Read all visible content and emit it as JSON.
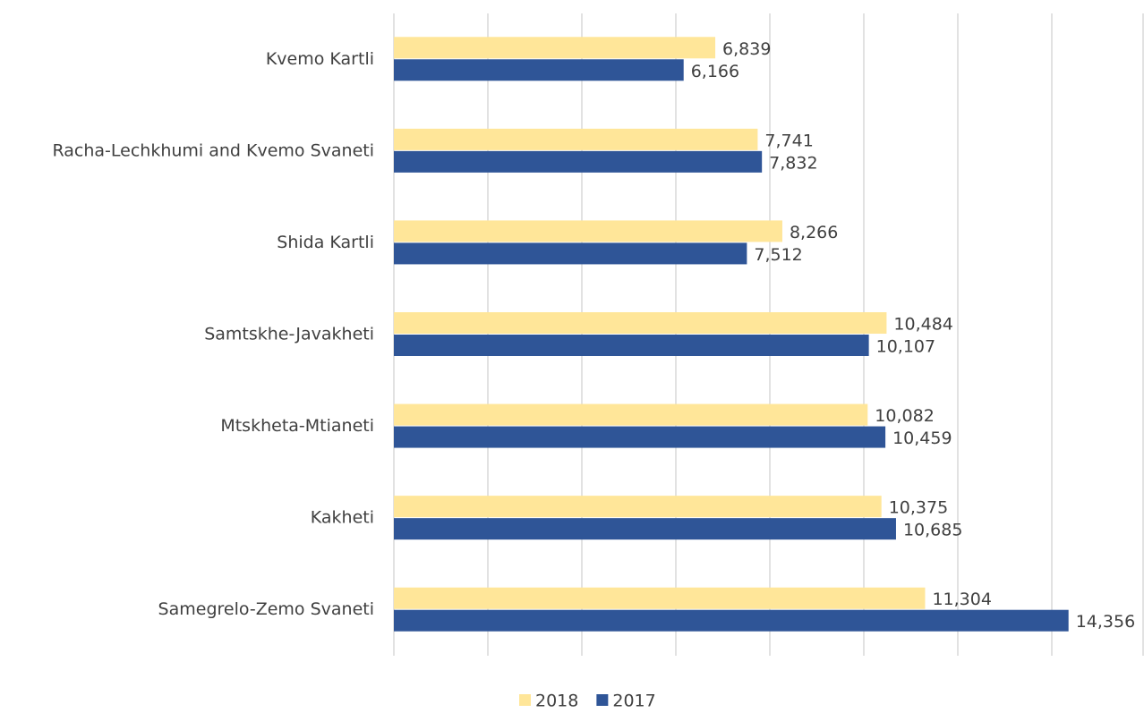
{
  "chart_data": {
    "type": "hbar",
    "categories": [
      "Kvemo Kartli",
      "Racha-Lechkhumi and Kvemo Svaneti",
      "Shida Kartli",
      "Samtskhe-Javakheti",
      "Mtskheta-Mtianeti",
      "Kakheti",
      "Samegrelo-Zemo Svaneti"
    ],
    "series": [
      {
        "name": "2018",
        "color": "#ffe699",
        "values": [
          6839,
          7741,
          8266,
          10484,
          10082,
          10375,
          11304
        ],
        "value_labels": [
          "6,839",
          "7,741",
          "8,266",
          "10,484",
          "10,082",
          "10,375",
          "11,304"
        ]
      },
      {
        "name": "2017",
        "color": "#2f5597",
        "values": [
          6166,
          7832,
          7512,
          10107,
          10459,
          10685,
          14356
        ],
        "value_labels": [
          "6,166",
          "7,832",
          "7,512",
          "10,107",
          "10,459",
          "10,685",
          "14,356"
        ]
      }
    ],
    "xlim": [
      0,
      16000
    ],
    "xticks": [
      0,
      2000,
      4000,
      6000,
      8000,
      10000,
      12000,
      14000,
      16000
    ],
    "grid": true,
    "legend": "bottom"
  }
}
